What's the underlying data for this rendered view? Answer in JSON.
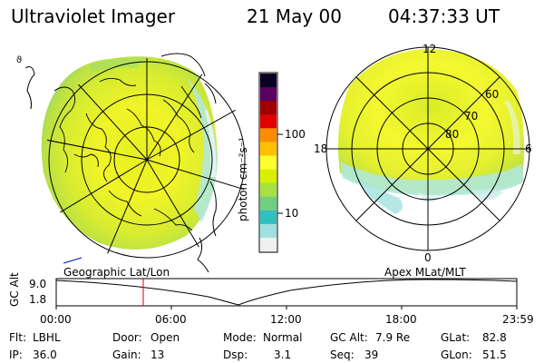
{
  "header": {
    "title": "Ultraviolet Imager",
    "date": "21 May 00",
    "time": "04:37:33 UT"
  },
  "colorbar": {
    "unit_label": "photon cm⁻²s⁻¹",
    "ticks": [
      "100",
      "10"
    ],
    "colors": [
      "#0a0020",
      "#5a0060",
      "#a00000",
      "#e00000",
      "#ff8c00",
      "#ffc000",
      "#ffff30",
      "#d8f000",
      "#a8e040",
      "#70d080",
      "#30c0c0",
      "#a0e0e0",
      "#f0f0f0"
    ]
  },
  "left_map": {
    "label": "Geographic Lat/Lon"
  },
  "right_map": {
    "label": "Apex MLat/MLT",
    "mlt_labels": [
      "12",
      "18",
      "6",
      "0"
    ],
    "lat_labels": [
      "60",
      "70",
      "80"
    ]
  },
  "orbit": {
    "axis_label": "GC Alt",
    "y_ticks": [
      "9.0",
      "1.8"
    ],
    "x_ticks": [
      "00:00",
      "06:00",
      "12:00",
      "18:00",
      "23:59"
    ]
  },
  "info": {
    "filter_label": "Flt:",
    "filter_value": "LBHL",
    "ip_label": "IP:",
    "ip_value": "36.0",
    "door_label": "Door:",
    "door_value": "Open",
    "gain_label": "Gain:",
    "gain_value": "13",
    "mode_label": "Mode:",
    "mode_value": "Normal",
    "dsp_label": "Dsp:",
    "dsp_value": "3.1",
    "gcalt_label": "GC Alt:",
    "gcalt_value": "7.9 Re",
    "seq_label": "Seq:",
    "seq_value": "39",
    "glat_label": "GLat:",
    "glat_value": "82.8",
    "glon_label": "GLon:",
    "glon_value": "51.5"
  }
}
